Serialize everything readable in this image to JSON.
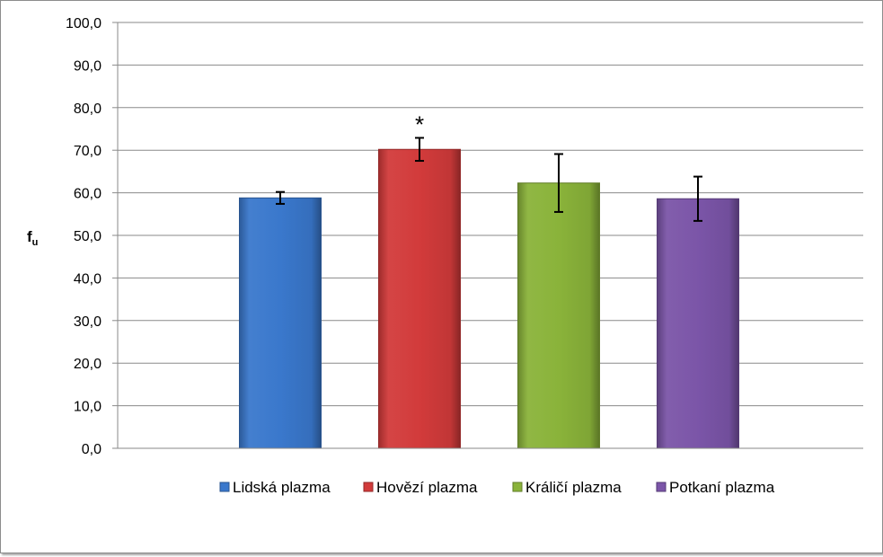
{
  "chart_data": {
    "type": "bar",
    "categories": [
      "Lidská plazma",
      "Hovězí plazma",
      "Králičí plazma",
      "Potkaní plazma"
    ],
    "values": [
      58.8,
      70.2,
      62.3,
      58.6
    ],
    "error_bars": [
      1.4,
      2.7,
      6.8,
      5.2
    ],
    "annotations": [
      {
        "category": "Hovězí plazma",
        "text": "*"
      }
    ],
    "colors": [
      "#3a78cc",
      "#d23b3b",
      "#8ab33a",
      "#7b55a8"
    ],
    "ylabel": {
      "main": "f",
      "subscript": "u"
    },
    "ylim": [
      0,
      100
    ],
    "ytick_step": 10,
    "yticks": [
      "0,0",
      "10,0",
      "20,0",
      "30,0",
      "40,0",
      "50,0",
      "60,0",
      "70,0",
      "80,0",
      "90,0",
      "100,0"
    ],
    "grid": true,
    "legend": {
      "position": "bottom",
      "entries": [
        "Lidská plazma",
        "Hovězí plazma",
        "Králičí plazma",
        "Potkaní plazma"
      ]
    }
  }
}
